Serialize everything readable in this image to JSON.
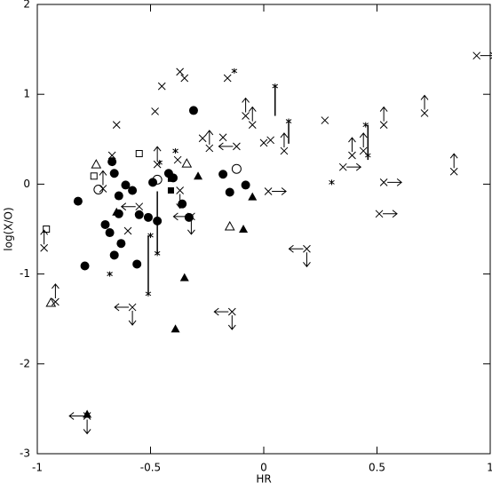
{
  "chart_data": {
    "type": "scatter",
    "xlabel": "HR",
    "ylabel": "log(X/O)",
    "xlim": [
      -1,
      1
    ],
    "ylim": [
      -3,
      2
    ],
    "xticks": [
      -1,
      -0.5,
      0,
      0.5,
      1
    ],
    "yticks": [
      -3,
      -2,
      -1,
      0,
      1,
      2
    ],
    "series": [
      {
        "marker": "filled-circle",
        "color": "#000000",
        "x": [
          -0.82,
          -0.79,
          -0.67,
          -0.66,
          -0.7,
          -0.68,
          -0.64,
          -0.64,
          -0.63,
          -0.66,
          -0.61,
          -0.58,
          -0.56,
          -0.55,
          -0.51,
          -0.49,
          -0.47,
          -0.42,
          -0.4,
          -0.31,
          -0.36,
          -0.33,
          -0.18,
          -0.15,
          -0.08
        ],
        "values": [
          -0.19,
          -0.91,
          0.25,
          0.12,
          -0.45,
          -0.54,
          -0.13,
          -0.33,
          -0.66,
          -0.79,
          -0.01,
          -0.07,
          -0.89,
          -0.34,
          -0.37,
          0.02,
          -0.41,
          0.12,
          0.07,
          0.82,
          -0.22,
          -0.37,
          0.11,
          -0.09,
          -0.01
        ]
      },
      {
        "marker": "open-circle",
        "color": "#000000",
        "x": [
          -0.73,
          -0.47,
          -0.12
        ],
        "values": [
          -0.06,
          0.05,
          0.17
        ]
      },
      {
        "marker": "open-square",
        "color": "#000000",
        "x": [
          -0.96,
          -0.75,
          -0.55
        ],
        "values": [
          -0.5,
          0.09,
          0.34
        ]
      },
      {
        "marker": "filled-square",
        "color": "#000000",
        "x": [
          -0.41,
          -0.41
        ],
        "values": [
          0.06,
          -0.07
        ]
      },
      {
        "marker": "open-triangle",
        "color": "#000000",
        "x": [
          -0.74,
          -0.34,
          -0.15,
          -0.94
        ],
        "values": [
          0.22,
          0.23,
          -0.47,
          -1.32
        ]
      },
      {
        "marker": "filled-triangle",
        "color": "#000000",
        "x": [
          -0.78,
          -0.65,
          -0.39,
          -0.35,
          -0.29,
          -0.09,
          -0.05
        ],
        "values": [
          -2.56,
          -0.31,
          -1.61,
          -1.04,
          0.09,
          -0.5,
          -0.14
        ]
      },
      {
        "marker": "cross",
        "color": "#000000",
        "x": [
          -0.97,
          -0.92,
          -0.78,
          -0.71,
          -0.67,
          -0.65,
          -0.58,
          -0.6,
          -0.55,
          -0.47,
          -0.48,
          -0.45,
          -0.37,
          -0.35,
          -0.38,
          -0.37,
          -0.32,
          -0.27,
          -0.24,
          -0.18,
          -0.16,
          -0.12,
          -0.14,
          -0.08,
          -0.05,
          0.02,
          0.0,
          0.03,
          0.09,
          0.19,
          0.27,
          0.35,
          0.39,
          0.44,
          0.53,
          0.53,
          0.51,
          0.71,
          0.84,
          0.94
        ],
        "values": [
          -0.71,
          -1.31,
          -2.58,
          -0.05,
          0.32,
          0.66,
          -1.37,
          -0.52,
          -0.25,
          0.22,
          0.81,
          1.09,
          1.25,
          1.18,
          0.27,
          -0.07,
          -0.36,
          0.51,
          0.4,
          0.52,
          1.18,
          0.42,
          -1.42,
          0.76,
          0.66,
          -0.08,
          0.46,
          0.49,
          0.37,
          -0.72,
          0.71,
          0.19,
          0.32,
          0.37,
          0.66,
          0.02,
          -0.33,
          0.79,
          0.14,
          1.43
        ],
        "limits": [
          "up",
          "up",
          "left-down",
          "up",
          null,
          null,
          "left-down",
          null,
          "left",
          "up",
          null,
          null,
          null,
          null,
          null,
          "down",
          "left-down",
          null,
          "up",
          null,
          null,
          "left",
          "left-down",
          "up",
          "up",
          "right",
          null,
          null,
          "up",
          "left-down",
          null,
          "right",
          "up",
          "up",
          "up",
          "right",
          "right",
          "up",
          "up",
          "right"
        ]
      },
      {
        "marker": "asterisk",
        "color": "#000000",
        "x": [
          -0.13,
          0.05,
          0.11,
          0.45,
          0.46,
          0.3,
          -0.46,
          -0.5,
          -0.51,
          -0.47,
          -0.68,
          -0.39
        ],
        "values": [
          1.26,
          1.09,
          0.7,
          0.66,
          0.32,
          0.02,
          0.24,
          -0.57,
          -1.22,
          -0.77,
          -1.0,
          0.37
        ]
      },
      {
        "marker": "range",
        "color": "#000000",
        "x": [
          -0.51,
          -0.47,
          0.05,
          0.11,
          0.46
        ],
        "low": [
          -1.22,
          -0.77,
          0.76,
          0.45,
          0.27
        ],
        "high": [
          -0.57,
          -0.08,
          1.09,
          0.7,
          0.66
        ]
      }
    ]
  }
}
